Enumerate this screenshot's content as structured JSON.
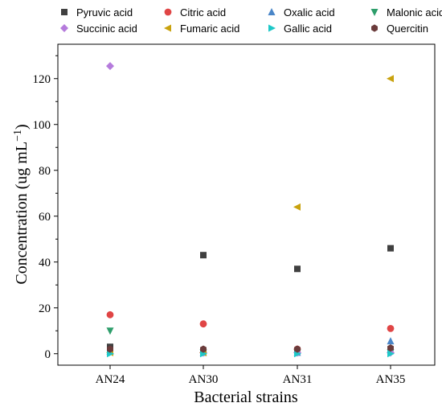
{
  "chart_data": {
    "type": "scatter",
    "title": "",
    "xlabel": "Bacterial strains",
    "ylabel_main": "Concentration (ug mL",
    "ylabel_sup": "−1",
    "ylabel_close": ")",
    "categories": [
      "AN24",
      "AN30",
      "AN31",
      "AN35"
    ],
    "ylim": [
      -5,
      135
    ],
    "yticks": [
      0,
      20,
      40,
      60,
      80,
      100,
      120
    ],
    "ytick_labels": [
      "0",
      "20",
      "40",
      "60",
      "80",
      "100",
      "120"
    ],
    "grid": false,
    "legend_position": "top",
    "series": [
      {
        "name": "Pyruvic acid",
        "marker": "square",
        "color": "#404040",
        "values": [
          3,
          43,
          37,
          46
        ]
      },
      {
        "name": "Citric acid",
        "marker": "circle",
        "color": "#e04545",
        "values": [
          17,
          13,
          2,
          11
        ]
      },
      {
        "name": "Oxalic acid",
        "marker": "triangle-up",
        "color": "#4a86c8",
        "values": [
          1,
          0.5,
          0.5,
          5.5
        ]
      },
      {
        "name": "Malonic acid",
        "marker": "triangle-down",
        "color": "#2e9e6b",
        "values": [
          10,
          0.5,
          0.5,
          0.5
        ]
      },
      {
        "name": "Succinic acid",
        "marker": "diamond",
        "color": "#b57bdc",
        "values": [
          125.5,
          0.5,
          0.5,
          0.5
        ]
      },
      {
        "name": "Fumaric acid",
        "marker": "triangle-left",
        "color": "#c9a20e",
        "values": [
          0.5,
          0.5,
          64,
          120
        ]
      },
      {
        "name": "Gallic acid",
        "marker": "triangle-right",
        "color": "#1ec8c8",
        "values": [
          0,
          0,
          0,
          0
        ]
      },
      {
        "name": "Quercitin",
        "marker": "hexagon",
        "color": "#6b3c3c",
        "values": [
          2,
          2,
          2,
          2.5
        ]
      }
    ]
  }
}
